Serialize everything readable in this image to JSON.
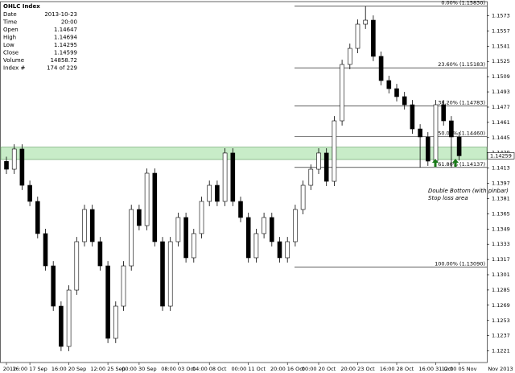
{
  "chart_data": {
    "type": "candlestick",
    "ylim": [
      1.12088,
      1.15878
    ],
    "yticks": [
      1.1221,
      1.1237,
      1.1253,
      1.1269,
      1.1285,
      1.1301,
      1.1317,
      1.1333,
      1.1349,
      1.1365,
      1.1381,
      1.1397,
      1.1413,
      1.1429,
      1.1445,
      1.1461,
      1.1477,
      1.1493,
      1.1509,
      1.1525,
      1.1541,
      1.1557,
      1.1573
    ],
    "up_color": "#ffffff",
    "down_color": "#000000",
    "categories": [
      "2012",
      null,
      null,
      "16:00 17 Sep",
      null,
      null,
      null,
      null,
      "16:00 20 Sep",
      null,
      null,
      null,
      null,
      "12:00 25 Sep",
      null,
      null,
      null,
      "00:00 30 Sep",
      null,
      null,
      null,
      null,
      "08:00 03 Oct",
      null,
      null,
      null,
      "04:00 08 Oct",
      null,
      null,
      null,
      null,
      "00:00 11 Oct",
      null,
      null,
      null,
      null,
      "20:00 16 Oct",
      null,
      null,
      null,
      "00:00 20 Oct",
      null,
      null,
      null,
      null,
      "20:00 23 Oct",
      null,
      null,
      null,
      null,
      "16:00 28 Oct",
      null,
      null,
      null,
      null,
      "16:00 31 Oct",
      null,
      null,
      "12:00 05 Nov"
    ],
    "x_end_label": "Nov 2013",
    "ohlc": [
      [
        1.142,
        1.1425,
        1.14068,
        1.14118
      ],
      [
        1.14118,
        1.1438,
        1.14068,
        1.1433
      ],
      [
        1.1433,
        1.1438,
        1.13899,
        1.13949
      ],
      [
        1.13949,
        1.13999,
        1.1373,
        1.1378
      ],
      [
        1.1378,
        1.1383,
        1.13392,
        1.13442
      ],
      [
        1.13442,
        1.13492,
        1.13053,
        1.13103
      ],
      [
        1.13103,
        1.13153,
        1.1263,
        1.1268
      ],
      [
        1.1268,
        1.1273,
        1.12207,
        1.12257
      ],
      [
        1.12257,
        1.12899,
        1.12207,
        1.12849
      ],
      [
        1.12849,
        1.13407,
        1.12799,
        1.13357
      ],
      [
        1.13357,
        1.13745,
        1.13307,
        1.13695
      ],
      [
        1.13695,
        1.13745,
        1.13307,
        1.13357
      ],
      [
        1.13357,
        1.13407,
        1.13053,
        1.13103
      ],
      [
        1.13103,
        1.13153,
        1.12292,
        1.12342
      ],
      [
        1.12342,
        1.1273,
        1.12292,
        1.1268
      ],
      [
        1.1268,
        1.13153,
        1.1263,
        1.13103
      ],
      [
        1.13103,
        1.13745,
        1.13053,
        1.13695
      ],
      [
        1.13695,
        1.13745,
        1.13476,
        1.13526
      ],
      [
        1.13526,
        1.14126,
        1.13476,
        1.14076
      ],
      [
        1.14076,
        1.14126,
        1.13307,
        1.13357
      ],
      [
        1.13357,
        1.13407,
        1.1263,
        1.1268
      ],
      [
        1.1268,
        1.13407,
        1.1263,
        1.13357
      ],
      [
        1.13357,
        1.13661,
        1.13307,
        1.13611
      ],
      [
        1.13611,
        1.13661,
        1.13138,
        1.13188
      ],
      [
        1.13188,
        1.13492,
        1.13138,
        1.13442
      ],
      [
        1.13442,
        1.1383,
        1.13392,
        1.1378
      ],
      [
        1.1378,
        1.13999,
        1.1373,
        1.13949
      ],
      [
        1.13949,
        1.13999,
        1.1373,
        1.1378
      ],
      [
        1.1378,
        1.14338,
        1.1373,
        1.14288
      ],
      [
        1.14288,
        1.14338,
        1.1373,
        1.1378
      ],
      [
        1.1378,
        1.1383,
        1.13561,
        1.13611
      ],
      [
        1.13611,
        1.13661,
        1.13138,
        1.13188
      ],
      [
        1.13188,
        1.13492,
        1.13138,
        1.13442
      ],
      [
        1.13442,
        1.13661,
        1.13392,
        1.13611
      ],
      [
        1.13611,
        1.13661,
        1.13307,
        1.13357
      ],
      [
        1.13357,
        1.13407,
        1.13138,
        1.13188
      ],
      [
        1.13188,
        1.13407,
        1.13138,
        1.13357
      ],
      [
        1.13357,
        1.13745,
        1.13307,
        1.13695
      ],
      [
        1.13695,
        1.13999,
        1.13645,
        1.13949
      ],
      [
        1.13949,
        1.14168,
        1.13899,
        1.14118
      ],
      [
        1.14118,
        1.14338,
        1.14068,
        1.14288
      ],
      [
        1.14288,
        1.14338,
        1.13941,
        1.13991
      ],
      [
        1.13991,
        1.14676,
        1.13941,
        1.14626
      ],
      [
        1.14626,
        1.15268,
        1.14576,
        1.15218
      ],
      [
        1.15218,
        1.15437,
        1.15168,
        1.15387
      ],
      [
        1.15387,
        1.15691,
        1.15337,
        1.15641
      ],
      [
        1.15641,
        1.1583,
        1.15591,
        1.15683
      ],
      [
        1.15683,
        1.15733,
        1.15253,
        1.15303
      ],
      [
        1.15303,
        1.15353,
        1.14999,
        1.15049
      ],
      [
        1.15049,
        1.15099,
        1.14914,
        1.14964
      ],
      [
        1.14964,
        1.15014,
        1.1483,
        1.1488
      ],
      [
        1.1488,
        1.1493,
        1.14745,
        1.14795
      ],
      [
        1.14795,
        1.14845,
        1.14491,
        1.14541
      ],
      [
        1.14541,
        1.14591,
        1.14137,
        1.14457
      ],
      [
        1.14457,
        1.14507,
        1.14153,
        1.14203
      ],
      [
        1.14203,
        1.14845,
        1.14153,
        1.14795
      ],
      [
        1.14795,
        1.14845,
        1.14576,
        1.14626
      ],
      [
        1.14626,
        1.14676,
        1.1414,
        1.14457
      ],
      [
        1.14457,
        1.14507,
        1.14209,
        1.14259
      ]
    ],
    "fib_levels": [
      {
        "value": 1.1583,
        "label": "0.00% (1.15830)"
      },
      {
        "value": 1.15183,
        "label": "23.60% (1.15183)"
      },
      {
        "value": 1.14783,
        "label": "38.20% (1.14783)"
      },
      {
        "value": 1.1446,
        "label": "50.00% (1.14460)"
      },
      {
        "value": 1.14137,
        "label": "61.80% (1.14137)"
      },
      {
        "value": 1.1309,
        "label": "100.00% (1.13090)"
      }
    ],
    "highlight_band": [
      1.1422,
      1.1435
    ],
    "band_color": "#c8ecc8",
    "annotations": [
      "Double Bottom (with pinbar)",
      "Stop loss area"
    ],
    "info": {
      "title": "OHLC Index",
      "rows": [
        [
          "Date",
          "2013-10-23"
        ],
        [
          "Time",
          "20:00"
        ],
        [
          "Open",
          1.14647
        ],
        [
          "High",
          1.14694
        ],
        [
          "Low",
          1.14295
        ],
        [
          "Close",
          1.14599
        ],
        [
          "Volume",
          14858.72
        ],
        [
          "Index #",
          "174 of 229"
        ]
      ]
    }
  }
}
